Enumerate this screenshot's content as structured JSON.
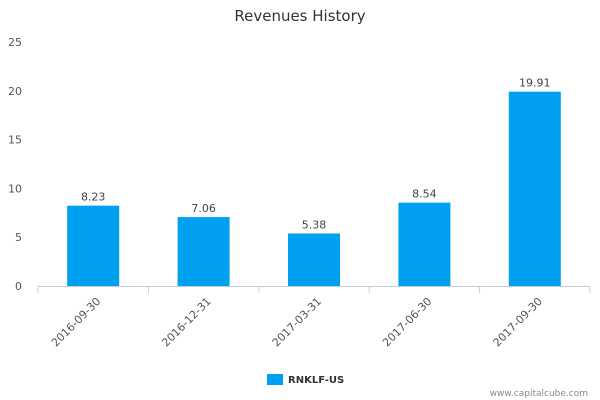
{
  "chart_data": {
    "type": "bar",
    "title": "Revenues History",
    "categories": [
      "2016-09-30",
      "2016-12-31",
      "2017-03-31",
      "2017-06-30",
      "2017-09-30"
    ],
    "series": [
      {
        "name": "RNKLF-US",
        "values": [
          8.23,
          7.06,
          5.38,
          8.54,
          19.91
        ],
        "color": "#00a0f0"
      }
    ],
    "data_labels": [
      "8.23",
      "7.06",
      "5.38",
      "8.54",
      "19.91"
    ],
    "yticks": [
      "0",
      "5",
      "10",
      "15",
      "20",
      "25"
    ],
    "ylim": [
      0,
      25
    ],
    "grid": false,
    "legend_position": "bottom-center"
  },
  "credit": "www.capitalcube.com"
}
